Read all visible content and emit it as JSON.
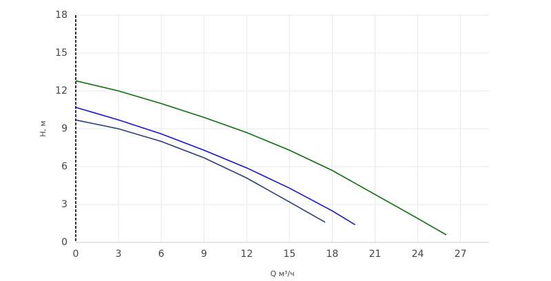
{
  "chart_data": {
    "type": "line",
    "xlabel": "Q м³/ч",
    "ylabel": "H, м",
    "xlim": [
      0,
      29
    ],
    "ylim": [
      0,
      18
    ],
    "xticks": [
      0,
      3,
      6,
      9,
      12,
      15,
      18,
      21,
      24,
      27
    ],
    "yticks": [
      0,
      3,
      6,
      9,
      12,
      15,
      18
    ],
    "grid": true,
    "series": [
      {
        "color": "#0a6e0a",
        "x": [
          0,
          3,
          6,
          9,
          12,
          15,
          18,
          21,
          24,
          26
        ],
        "values": [
          12.8,
          12.0,
          11.0,
          9.9,
          8.7,
          7.3,
          5.7,
          3.8,
          1.9,
          0.6
        ]
      },
      {
        "color": "#1414d2",
        "x": [
          0,
          3,
          6,
          9,
          12,
          15,
          18,
          19.6
        ],
        "values": [
          10.7,
          9.7,
          8.6,
          7.3,
          5.9,
          4.3,
          2.5,
          1.4
        ]
      },
      {
        "color": "#283c78",
        "x": [
          0,
          3,
          6,
          9,
          12,
          15,
          17.5
        ],
        "values": [
          9.7,
          9.0,
          8.0,
          6.7,
          5.1,
          3.2,
          1.6
        ]
      }
    ]
  }
}
